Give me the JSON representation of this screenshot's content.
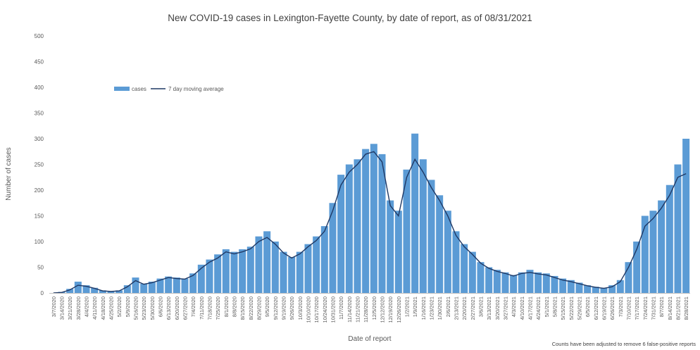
{
  "chart_data": {
    "type": "bar",
    "title": "New COVID-19 cases in Lexington-Fayette County, by date of report, as of 08/31/2021",
    "xlabel": "Date of report",
    "ylabel": "Number of cases",
    "ylim": [
      0,
      500
    ],
    "yticks": [
      0,
      50,
      100,
      150,
      200,
      250,
      300,
      350,
      400,
      450,
      500
    ],
    "xticks": [
      "3/7/2020",
      "3/14/2020",
      "3/21/2020",
      "3/28/2020",
      "4/4/2020",
      "4/11/2020",
      "4/18/2020",
      "4/25/2020",
      "5/2/2020",
      "5/9/2020",
      "5/16/2020",
      "5/23/2020",
      "5/30/2020",
      "6/6/2020",
      "6/13/2020",
      "6/20/2020",
      "6/27/2020",
      "7/4/2020",
      "7/11/2020",
      "7/18/2020",
      "7/25/2020",
      "8/1/2020",
      "8/8/2020",
      "8/15/2020",
      "8/22/2020",
      "8/29/2020",
      "9/5/2020",
      "9/12/2020",
      "9/19/2020",
      "9/26/2020",
      "10/3/2020",
      "10/10/2020",
      "10/17/2020",
      "10/24/2020",
      "10/31/2020",
      "11/7/2020",
      "11/14/2020",
      "11/21/2020",
      "11/28/2020",
      "12/5/2020",
      "12/12/2020",
      "12/19/2020",
      "12/26/2020",
      "1/2/2021",
      "1/9/2021",
      "1/16/2021",
      "1/23/2021",
      "1/30/2021",
      "2/6/2021",
      "2/13/2021",
      "2/20/2021",
      "2/27/2021",
      "3/6/2021",
      "3/13/2021",
      "3/20/2021",
      "3/27/2021",
      "4/3/2021",
      "4/10/2021",
      "4/17/2021",
      "4/24/2021",
      "5/1/2021",
      "5/8/2021",
      "5/15/2021",
      "5/22/2021",
      "5/29/2021",
      "6/5/2021",
      "6/12/2021",
      "6/19/2021",
      "6/26/2021",
      "7/3/2021",
      "7/10/2021",
      "7/17/2021",
      "7/24/2021",
      "7/31/2021",
      "8/7/2021",
      "8/14/2021",
      "8/21/2021",
      "8/28/2021"
    ],
    "grid": false,
    "legend_position": "top-left",
    "series": [
      {
        "name": "cases",
        "type": "bar",
        "color": "#5b9bd5",
        "values": [
          0,
          2,
          8,
          22,
          15,
          10,
          5,
          3,
          5,
          15,
          30,
          18,
          22,
          28,
          32,
          30,
          28,
          38,
          55,
          65,
          75,
          85,
          80,
          85,
          90,
          110,
          120,
          100,
          80,
          70,
          80,
          95,
          110,
          130,
          175,
          230,
          250,
          260,
          280,
          290,
          270,
          180,
          160,
          240,
          310,
          260,
          220,
          190,
          160,
          120,
          95,
          80,
          60,
          50,
          45,
          40,
          35,
          40,
          45,
          40,
          38,
          33,
          28,
          25,
          20,
          15,
          12,
          10,
          15,
          25,
          60,
          100,
          150,
          160,
          180,
          210,
          250,
          300
        ]
      },
      {
        "name": "7 day moving average",
        "type": "line",
        "color": "#1f3864",
        "values": [
          0,
          1,
          6,
          15,
          13,
          9,
          4,
          3,
          4,
          12,
          24,
          17,
          20,
          25,
          30,
          28,
          27,
          34,
          48,
          60,
          68,
          80,
          76,
          80,
          86,
          100,
          108,
          95,
          78,
          68,
          76,
          90,
          102,
          120,
          160,
          210,
          235,
          250,
          270,
          275,
          255,
          170,
          150,
          225,
          260,
          235,
          205,
          180,
          150,
          112,
          90,
          75,
          58,
          48,
          42,
          38,
          33,
          38,
          40,
          37,
          35,
          30,
          25,
          22,
          18,
          14,
          11,
          9,
          12,
          22,
          50,
          85,
          130,
          145,
          165,
          190,
          225,
          232
        ]
      }
    ],
    "annotations": [
      "Counts have been adjusted to remove 6 false-positive reports"
    ]
  }
}
